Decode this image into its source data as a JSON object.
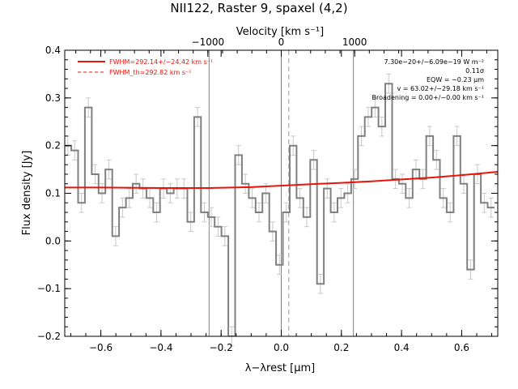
{
  "chart_data": {
    "type": "line",
    "title": "NII122, Raster 9, spaxel (4,2)",
    "xlabel": "λ−λrest [μm]",
    "x2label": "Velocity [km s⁻¹]",
    "ylabel": "Flux density [Jy]",
    "xlim": [
      -0.72,
      0.72
    ],
    "ylim": [
      -0.2,
      0.4
    ],
    "x2lim": [
      -2950,
      2950
    ],
    "xticks": [
      -0.6,
      -0.4,
      -0.2,
      0.0,
      0.2,
      0.4,
      0.6
    ],
    "xtick_labels": [
      "−0.6",
      "−0.4",
      "−0.2",
      "0.0",
      "0.2",
      "0.4",
      "0.6"
    ],
    "yticks": [
      -0.2,
      -0.1,
      0.0,
      0.1,
      0.2,
      0.3,
      0.4
    ],
    "ytick_labels": [
      "−0.2",
      "−0.1",
      "0.0",
      "0.1",
      "0.2",
      "0.3",
      "0.4"
    ],
    "x2ticks": [
      -1000,
      0,
      1000
    ],
    "x2tick_labels": [
      "−1000",
      "0",
      "1000"
    ],
    "vlines_solid": [
      -0.24,
      0.0,
      0.24
    ],
    "vline_dashed": 0.025,
    "spectrum": {
      "name": "spectrum",
      "color": "#808080",
      "bin_width": 0.0227,
      "x": [
        -0.7096,
        -0.6869,
        -0.6642,
        -0.6415,
        -0.6188,
        -0.5961,
        -0.5734,
        -0.5507,
        -0.528,
        -0.5053,
        -0.4826,
        -0.4599,
        -0.4372,
        -0.4145,
        -0.3918,
        -0.3691,
        -0.3464,
        -0.3237,
        -0.301,
        -0.2783,
        -0.2556,
        -0.2329,
        -0.2102,
        -0.1875,
        -0.1648,
        -0.1421,
        -0.1194,
        -0.0967,
        -0.074,
        -0.0513,
        -0.0286,
        -0.0059,
        0.0168,
        0.0395,
        0.0622,
        0.0849,
        0.1076,
        0.1303,
        0.153,
        0.1757,
        0.1984,
        0.2211,
        0.2438,
        0.2665,
        0.2892,
        0.3119,
        0.3346,
        0.3573,
        0.38,
        0.4027,
        0.4254,
        0.4481,
        0.4708,
        0.4935,
        0.5162,
        0.5389,
        0.5616,
        0.5843,
        0.607,
        0.6297,
        0.6524,
        0.6751,
        0.6978
      ],
      "y": [
        0.2,
        0.19,
        0.08,
        0.28,
        0.14,
        0.1,
        0.15,
        0.01,
        0.07,
        0.09,
        0.12,
        0.11,
        0.09,
        0.06,
        0.11,
        0.1,
        0.11,
        0.11,
        0.04,
        0.26,
        0.06,
        0.05,
        0.03,
        0.01,
        -0.2,
        0.18,
        0.12,
        0.09,
        0.06,
        0.1,
        0.02,
        -0.05,
        0.06,
        0.2,
        0.09,
        0.05,
        0.17,
        -0.09,
        0.11,
        0.06,
        0.09,
        0.1,
        0.13,
        0.22,
        0.26,
        0.28,
        0.24,
        0.33,
        0.13,
        0.12,
        0.09,
        0.15,
        0.13,
        0.22,
        0.17,
        0.09,
        0.06,
        0.22,
        0.12,
        -0.06,
        0.14,
        0.08,
        0.07
      ],
      "err": [
        0.02,
        0.02,
        0.02,
        0.02,
        0.02,
        0.02,
        0.02,
        0.02,
        0.02,
        0.02,
        0.02,
        0.02,
        0.02,
        0.02,
        0.02,
        0.02,
        0.02,
        0.02,
        0.02,
        0.02,
        0.02,
        0.02,
        0.02,
        0.02,
        0.02,
        0.02,
        0.02,
        0.02,
        0.02,
        0.02,
        0.02,
        0.02,
        0.02,
        0.02,
        0.02,
        0.02,
        0.02,
        0.02,
        0.02,
        0.02,
        0.02,
        0.02,
        0.02,
        0.02,
        0.02,
        0.02,
        0.02,
        0.02,
        0.02,
        0.02,
        0.02,
        0.02,
        0.02,
        0.02,
        0.02,
        0.02,
        0.02,
        0.02,
        0.02,
        0.02,
        0.02,
        0.02,
        0.02
      ]
    },
    "fit": {
      "name": "fit",
      "color": "#e8140a",
      "x": [
        -0.72,
        -0.6,
        -0.4,
        -0.24,
        -0.1,
        0.0,
        0.1,
        0.2,
        0.3,
        0.4,
        0.5,
        0.6,
        0.72
      ],
      "y": [
        0.112,
        0.112,
        0.111,
        0.111,
        0.113,
        0.116,
        0.119,
        0.122,
        0.125,
        0.129,
        0.133,
        0.138,
        0.145
      ]
    },
    "legend": [
      {
        "label": "FWHM=292.14+/−24.42 km s⁻¹",
        "color": "#e8140a",
        "style": "solid"
      },
      {
        "label": "FWHM_th=292.82 km s⁻¹",
        "color": "#e8140a",
        "style": "dashed"
      }
    ],
    "annotations": [
      "7.30e−20+/−6.09e−19 W m⁻²",
      "0.11σ",
      "EQW = −0.23 μm",
      "v = 63.02+/−29.18 km s⁻¹",
      "Broadening = 0.00+/−0.00 km s⁻¹"
    ]
  }
}
